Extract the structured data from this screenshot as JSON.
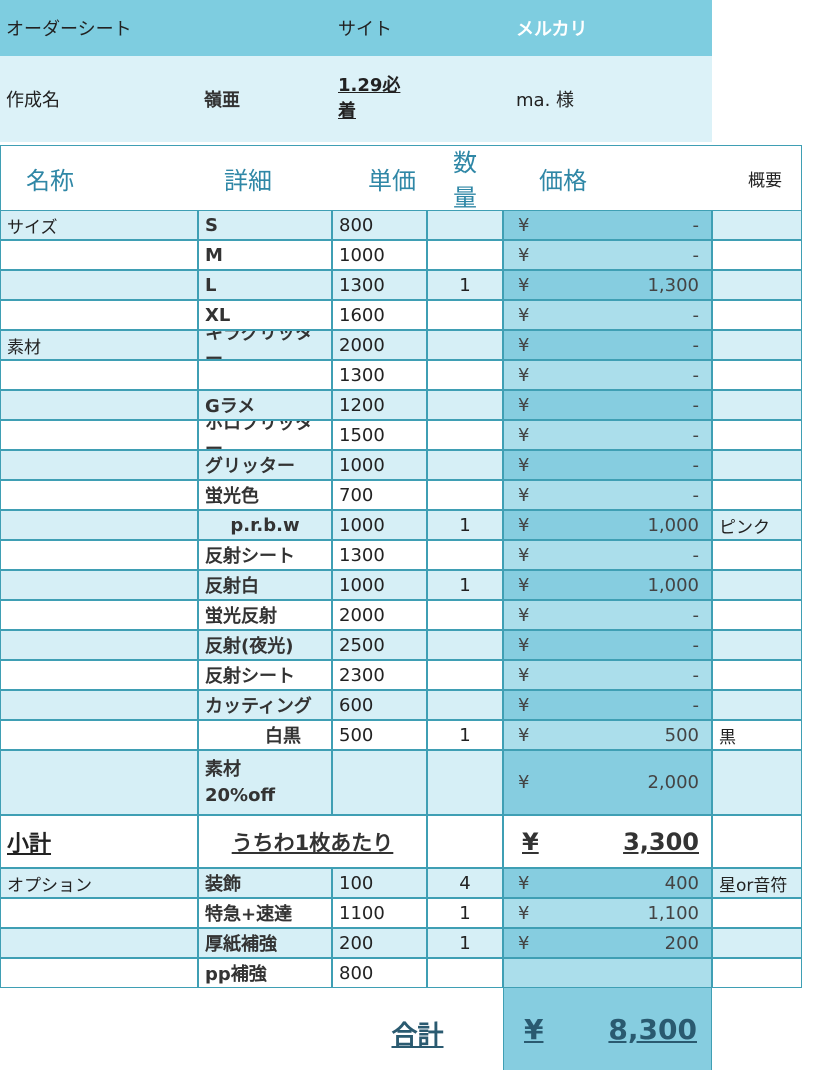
{
  "header": {
    "title": "オーダーシート",
    "site_label": "サイト",
    "site": "メルカリ",
    "name_label": "作成名",
    "name": "嶺亜",
    "date": "1.29必着",
    "customer": "ma. 様"
  },
  "table": {
    "columns": [
      "名称",
      "詳細",
      "単価",
      "数量",
      "価格",
      "概要"
    ],
    "rows": [
      [
        "サイズ",
        "S",
        "800",
        null,
        "¥",
        "-",
        null
      ],
      [
        null,
        "M",
        "1000",
        null,
        "¥",
        "-",
        null
      ],
      [
        null,
        "L",
        "1300",
        "1",
        "¥",
        "1,300",
        null
      ],
      [
        null,
        "XL",
        "1600",
        null,
        "¥",
        "-",
        null
      ],
      [
        "素材",
        "キラグリッター",
        "2000",
        null,
        "¥",
        "-",
        null
      ],
      [
        null,
        null,
        "1300",
        null,
        "¥",
        "-",
        null
      ],
      [
        null,
        "Gラメ",
        "1200",
        null,
        "¥",
        "-",
        null
      ],
      [
        null,
        "ホロブリッター",
        "1500",
        null,
        "¥",
        "-",
        null
      ],
      [
        null,
        "グリッター",
        "1000",
        null,
        "¥",
        "-",
        null
      ],
      [
        null,
        "蛍光色",
        "700",
        null,
        "¥",
        "-",
        null
      ],
      [
        null,
        "p.r.b.w",
        "1000",
        "1",
        "¥",
        "1,000",
        "ピンク"
      ],
      [
        null,
        "反射シート",
        "1300",
        null,
        "¥",
        "-",
        null
      ],
      [
        null,
        "反射白",
        "1000",
        "1",
        "¥",
        "1,000",
        null
      ],
      [
        null,
        "蛍光反射",
        "2000",
        null,
        "¥",
        "-",
        null
      ],
      [
        null,
        "反射(夜光)",
        "2500",
        null,
        "¥",
        "-",
        null
      ],
      [
        null,
        "反射シート",
        "2300",
        null,
        "¥",
        "-",
        null
      ],
      [
        null,
        "カッティング",
        "600",
        null,
        "¥",
        "-",
        null
      ],
      [
        null,
        "白黒",
        "500",
        "1",
        "¥",
        "500",
        "黒"
      ]
    ],
    "discount": {
      "detail": [
        "素材",
        "20%off"
      ],
      "yen": "¥",
      "price": "2,000"
    },
    "subtotal": {
      "label": "小計",
      "detail": "うちわ1枚あたり",
      "yen": "¥",
      "price": "3,300"
    },
    "options": [
      [
        "オプション",
        "装飾",
        "100",
        "4",
        "¥",
        "400",
        "星or音符"
      ],
      [
        null,
        "特急+速達",
        "1100",
        "1",
        "¥",
        "1,100",
        null
      ],
      [
        null,
        "厚紙補強",
        "200",
        "1",
        "¥",
        "200",
        null
      ],
      [
        null,
        "pp補強",
        "800",
        null,
        null,
        null,
        null
      ]
    ],
    "total": {
      "label": "合計",
      "yen": "¥",
      "price": "8,300"
    }
  }
}
